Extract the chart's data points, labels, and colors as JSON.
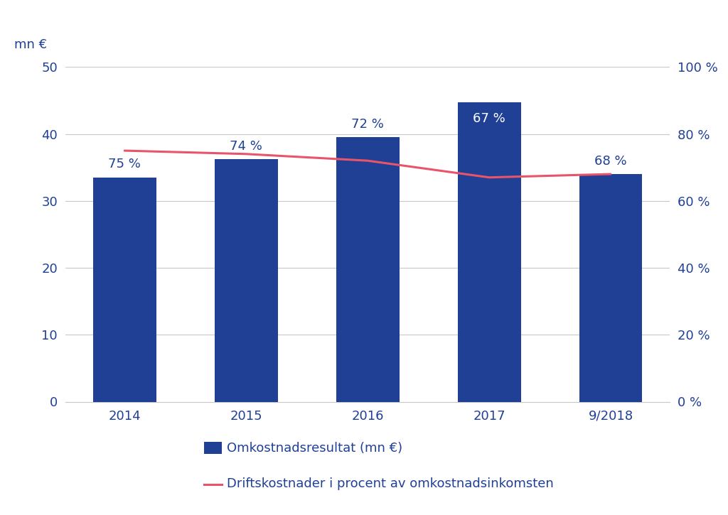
{
  "categories": [
    "2014",
    "2015",
    "2016",
    "2017",
    "9/2018"
  ],
  "bar_values": [
    33.5,
    36.2,
    39.5,
    44.7,
    34.0
  ],
  "line_pct": [
    75,
    74,
    72,
    67,
    68
  ],
  "bar_color": "#1F4095",
  "line_color": "#E8546A",
  "ylabel_left": "mn €",
  "ylim_left": [
    0,
    50
  ],
  "ylim_right": [
    0,
    100
  ],
  "yticks_left": [
    0,
    10,
    20,
    30,
    40,
    50
  ],
  "yticks_right": [
    0,
    20,
    40,
    60,
    80,
    100
  ],
  "ytick_right_labels": [
    "0 %",
    "20 %",
    "40 %",
    "60 %",
    "80 %",
    "100 %"
  ],
  "legend_bar": "Omkostnadsresultat (mn €)",
  "legend_line": "Driftskostnader i procent av omkostnadsinkomsten",
  "axis_color": "#1F4095",
  "label_color": "#1F4095",
  "background_color": "#FFFFFF",
  "grid_color": "#C8C8C8",
  "pct_labels": [
    "75 %",
    "74 %",
    "72 %",
    "67 %",
    "68 %"
  ],
  "pct_label_colors": [
    "#1F4095",
    "#1F4095",
    "#1F4095",
    "#FFFFFF",
    "#1F4095"
  ]
}
